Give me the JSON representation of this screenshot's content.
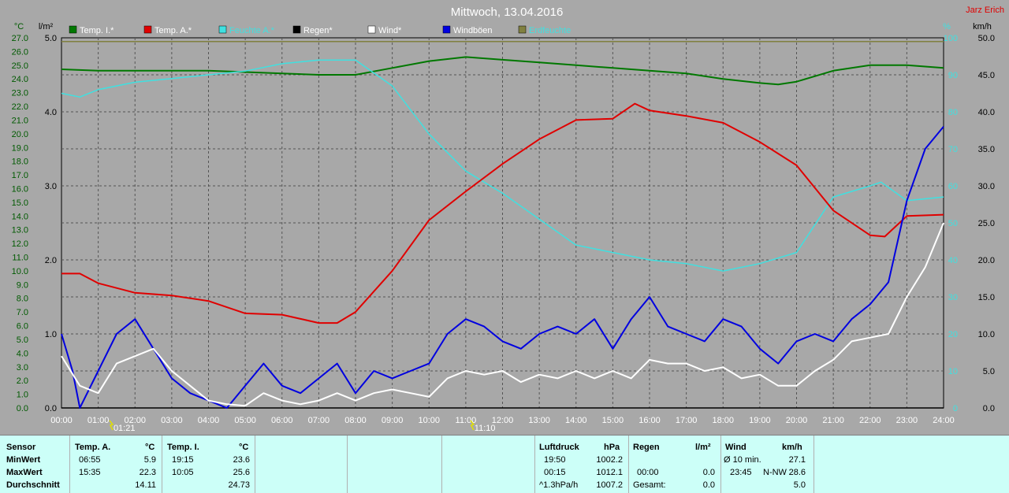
{
  "chart_data": {
    "type": "line",
    "title": "Mittwoch, 13.04.2016",
    "author": "Jarz Erich",
    "x_range": [
      "00:00",
      "24:00"
    ],
    "x_ticks": [
      "00:00",
      "01:00",
      "02:00",
      "03:00",
      "04:00",
      "05:00",
      "06:00",
      "07:00",
      "08:00",
      "09:00",
      "10:00",
      "11:00",
      "12:00",
      "13:00",
      "14:00",
      "15:00",
      "16:00",
      "17:00",
      "18:00",
      "19:00",
      "20:00",
      "21:00",
      "22:00",
      "23:00",
      "24:00"
    ],
    "axes": {
      "temp_c": {
        "label": "°C",
        "range": [
          0,
          27
        ],
        "ticks": [
          "0.0",
          "1.0",
          "2.0",
          "3.0",
          "4.0",
          "5.0",
          "6.0",
          "7.0",
          "8.0",
          "9.0",
          "10.0",
          "11.0",
          "12.0",
          "13.0",
          "14.0",
          "15.0",
          "16.0",
          "17.0",
          "18.0",
          "19.0",
          "20.0",
          "21.0",
          "22.0",
          "23.0",
          "24.0",
          "25.0",
          "26.0",
          "27.0"
        ]
      },
      "rain_lm2": {
        "label": "l/m²",
        "range": [
          0,
          5
        ],
        "ticks": [
          "0.0",
          "1.0",
          "2.0",
          "3.0",
          "4.0",
          "5.0"
        ]
      },
      "humidity_pct": {
        "label": "%",
        "range": [
          0,
          100
        ],
        "ticks": [
          "0",
          "10",
          "20",
          "30",
          "40",
          "50",
          "60",
          "70",
          "80",
          "90",
          "100"
        ]
      },
      "wind_kmh": {
        "label": "km/h",
        "range": [
          0,
          50
        ],
        "ticks": [
          "0.0",
          "5.0",
          "10.0",
          "15.0",
          "20.0",
          "25.0",
          "30.0",
          "35.0",
          "40.0",
          "45.0",
          "50.0"
        ]
      }
    },
    "legend": [
      {
        "name": "Temp. I.*",
        "color": "#007800"
      },
      {
        "name": "Temp. A.*",
        "color": "#e00000"
      },
      {
        "name": "Feuchte A.*",
        "color": "#40e0e0"
      },
      {
        "name": "Regen*",
        "color": "#000000"
      },
      {
        "name": "Wind*",
        "color": "#ffffff"
      },
      {
        "name": "Windböen",
        "color": "#0000e0"
      },
      {
        "name": "Erdfeuchte",
        "color": "#808040"
      }
    ],
    "event_markers": [
      {
        "label": "01:21",
        "hour": 1.35
      },
      {
        "label": "11:10",
        "hour": 11.17
      }
    ],
    "series": [
      {
        "name": "Temp. I.*",
        "axis": "temp_c",
        "color": "#007800",
        "x": [
          0,
          1,
          2,
          3,
          4,
          5,
          6,
          7,
          8,
          9,
          10,
          11,
          12,
          13,
          14,
          15,
          16,
          17,
          18,
          19,
          19.5,
          20,
          21,
          22,
          23,
          24
        ],
        "y": [
          24.7,
          24.6,
          24.6,
          24.6,
          24.6,
          24.5,
          24.4,
          24.3,
          24.3,
          24.8,
          25.3,
          25.6,
          25.4,
          25.2,
          25.0,
          24.8,
          24.6,
          24.4,
          24.0,
          23.7,
          23.6,
          23.8,
          24.6,
          25.0,
          25.0,
          24.8
        ]
      },
      {
        "name": "Temp. A.*",
        "axis": "temp_c",
        "color": "#e00000",
        "x": [
          0,
          0.5,
          1,
          2,
          3,
          4,
          5,
          6,
          7,
          7.5,
          8,
          9,
          10,
          11,
          12,
          13,
          14,
          15,
          15.6,
          16,
          17,
          18,
          19,
          20,
          21,
          22,
          22.4,
          23,
          24
        ],
        "y": [
          9.8,
          9.8,
          9.1,
          8.4,
          8.2,
          7.8,
          6.9,
          6.8,
          6.2,
          6.2,
          7.0,
          10.0,
          13.7,
          15.8,
          17.8,
          19.6,
          21.0,
          21.1,
          22.2,
          21.7,
          21.3,
          20.8,
          19.4,
          17.7,
          14.4,
          12.6,
          12.5,
          14.0,
          14.1
        ]
      },
      {
        "name": "Feuchte A.*",
        "axis": "humidity_pct",
        "color": "#40e0e0",
        "x": [
          0,
          0.5,
          1,
          2,
          3,
          4,
          5,
          6,
          7,
          8,
          9,
          10,
          11,
          12,
          13,
          14,
          15,
          16,
          17,
          18,
          19,
          20,
          21,
          22,
          22.3,
          23,
          24
        ],
        "y": [
          85,
          84,
          86,
          88,
          89,
          90,
          91,
          93,
          94,
          94,
          87,
          74,
          64,
          58,
          51,
          44,
          42,
          40,
          39,
          37,
          39,
          42,
          57,
          60,
          61,
          56,
          57
        ]
      },
      {
        "name": "Regen*",
        "axis": "rain_lm2",
        "color": "#000000",
        "x": [
          0,
          24
        ],
        "y": [
          0.0,
          0.0
        ]
      },
      {
        "name": "Wind*",
        "axis": "wind_kmh",
        "color": "#ffffff",
        "x": [
          0,
          0.5,
          1,
          1.5,
          2,
          2.5,
          3,
          3.5,
          4,
          4.5,
          5,
          5.5,
          6,
          6.5,
          7,
          7.5,
          8,
          8.5,
          9,
          9.5,
          10,
          10.5,
          11,
          11.5,
          12,
          12.5,
          13,
          13.5,
          14,
          14.5,
          15,
          15.5,
          16,
          16.5,
          17,
          17.5,
          18,
          18.5,
          19,
          19.5,
          20,
          20.5,
          21,
          21.5,
          22,
          22.5,
          23,
          23.5,
          24
        ],
        "y": [
          7,
          3,
          2,
          6,
          7,
          8,
          5,
          3,
          1,
          0.5,
          0.3,
          2,
          1,
          0.5,
          1,
          2,
          1,
          2,
          2.5,
          2,
          1.5,
          4,
          5,
          4.5,
          5,
          3.5,
          4.5,
          4,
          5,
          4,
          5,
          4,
          6.5,
          6,
          6,
          5,
          5.5,
          4,
          4.5,
          3,
          3,
          5,
          6.5,
          9,
          9.5,
          10,
          15,
          19,
          25
        ]
      },
      {
        "name": "Windböen",
        "axis": "wind_kmh",
        "color": "#0000e0",
        "x": [
          0,
          0.3,
          0.5,
          1,
          1.5,
          2,
          2.5,
          3,
          3.5,
          4,
          4.5,
          5,
          5.5,
          6,
          6.5,
          7,
          7.5,
          8,
          8.5,
          9,
          9.5,
          10,
          10.5,
          11,
          11.5,
          12,
          12.5,
          13,
          13.5,
          14,
          14.5,
          15,
          15.5,
          16,
          16.5,
          17,
          17.5,
          18,
          18.5,
          19,
          19.5,
          20,
          20.5,
          21,
          21.5,
          22,
          22.5,
          23,
          23.5,
          24
        ],
        "y": [
          10,
          5,
          0,
          5,
          10,
          12,
          8,
          4,
          2,
          1,
          0,
          3,
          6,
          3,
          2,
          4,
          6,
          2,
          5,
          4,
          5,
          6,
          10,
          12,
          11,
          9,
          8,
          10,
          11,
          10,
          12,
          8,
          12,
          15,
          11,
          10,
          9,
          12,
          11,
          8,
          6,
          9,
          10,
          9,
          12,
          14,
          17,
          28,
          35,
          38
        ]
      },
      {
        "name": "Erdfeuchte",
        "axis": "humidity_pct",
        "color": "#808040",
        "x": [
          0,
          24
        ],
        "y": [
          99,
          99
        ]
      }
    ]
  },
  "summary": {
    "headers": {
      "sensor": "Sensor",
      "temp_a": "Temp. A.",
      "temp_a_unit": "°C",
      "temp_i": "Temp. I.",
      "temp_i_unit": "°C",
      "luftdruck": "Luftdruck",
      "luftdruck_unit": "hPa",
      "regen": "Regen",
      "regen_unit": "l/m²",
      "wind": "Wind",
      "wind_unit": "km/h"
    },
    "rows": [
      {
        "label": "MinWert",
        "temp_a_time": "06:55",
        "temp_a_val": "5.9",
        "temp_i_time": "19:15",
        "temp_i_val": "23.6",
        "lp_time": "19:50",
        "lp_val": "1002.2",
        "regen_time": "",
        "regen_val": "",
        "wind_time": "Ø 10 min.",
        "wind_val": "27.1"
      },
      {
        "label": "MaxWert",
        "temp_a_time": "15:35",
        "temp_a_val": "22.3",
        "temp_i_time": "10:05",
        "temp_i_val": "25.6",
        "lp_time": "00:15",
        "lp_val": "1012.1",
        "regen_time": "00:00",
        "regen_val": "0.0",
        "wind_time": "23:45",
        "wind_dir": "N-NW",
        "wind_val": "28.6"
      },
      {
        "label": "Durchschnitt",
        "temp_a_time": "",
        "temp_a_val": "14.11",
        "temp_i_time": "",
        "temp_i_val": "24.73",
        "lp_time": "^1.3hPa/h",
        "lp_val": "1007.2",
        "regen_time": "Gesamt:",
        "regen_val": "0.0",
        "wind_time": "",
        "wind_val": "5.0"
      }
    ]
  }
}
